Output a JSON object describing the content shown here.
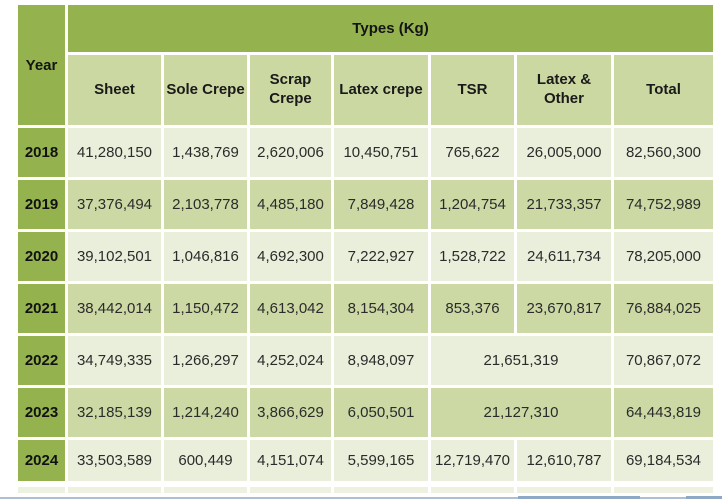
{
  "colors": {
    "header_green": "#94b34f",
    "subheader_green": "#cbd8a2",
    "band_row_green": "#ccd9a5",
    "light_row_green": "#eaefdb",
    "page_edge_blue": "#aebfd4"
  },
  "table": {
    "title": "Types (Kg)",
    "year_header": "Year",
    "columns": {
      "sheet": "Sheet",
      "sole_crepe": "Sole Crepe",
      "scrap_crepe": "Scrap Crepe",
      "latex_crepe": "Latex crepe",
      "tsr": "TSR",
      "latex_other": "Latex & Other",
      "total": "Total"
    },
    "rows": [
      {
        "year": "2018",
        "sheet": "41,280,150",
        "sole_crepe": "1,438,769",
        "scrap_crepe": "2,620,006",
        "latex_crepe": "10,450,751",
        "tsr": "765,622",
        "latex_other": "26,005,000",
        "total": "82,560,300"
      },
      {
        "year": "2019",
        "sheet": "37,376,494",
        "sole_crepe": "2,103,778",
        "scrap_crepe": "4,485,180",
        "latex_crepe": "7,849,428",
        "tsr": "1,204,754",
        "latex_other": "21,733,357",
        "total": "74,752,989"
      },
      {
        "year": "2020",
        "sheet": "39,102,501",
        "sole_crepe": "1,046,816",
        "scrap_crepe": "4,692,300",
        "latex_crepe": "7,222,927",
        "tsr": "1,528,722",
        "latex_other": "24,611,734",
        "total": "78,205,000"
      },
      {
        "year": "2021",
        "sheet": "38,442,014",
        "sole_crepe": "1,150,472",
        "scrap_crepe": "4,613,042",
        "latex_crepe": "8,154,304",
        "tsr": "853,376",
        "latex_other": "23,670,817",
        "total": "76,884,025"
      },
      {
        "year": "2022",
        "sheet": "34,749,335",
        "sole_crepe": "1,266,297",
        "scrap_crepe": "4,252,024",
        "latex_crepe": "8,948,097",
        "tsr_latex_other": "21,651,319",
        "total": "70,867,072"
      },
      {
        "year": "2023",
        "sheet": "32,185,139",
        "sole_crepe": "1,214,240",
        "scrap_crepe": "3,866,629",
        "latex_crepe": "6,050,501",
        "tsr_latex_other": "21,127,310",
        "total": "64,443,819"
      },
      {
        "year": "2024",
        "sheet": "33,503,589",
        "sole_crepe": "600,449",
        "scrap_crepe": "4,151,074",
        "latex_crepe": "5,599,165",
        "tsr": "12,719,470",
        "latex_other": "12,610,787",
        "total": "69,184,534"
      }
    ]
  },
  "chart_data": {
    "type": "table",
    "title": "Types (Kg)",
    "row_header": "Year",
    "columns": [
      "Sheet",
      "Sole Crepe",
      "Scrap Crepe",
      "Latex crepe",
      "TSR",
      "Latex & Other",
      "Total"
    ],
    "rows": [
      {
        "year": 2018,
        "values": [
          41280150,
          1438769,
          2620006,
          10450751,
          765622,
          26005000,
          82560300
        ]
      },
      {
        "year": 2019,
        "values": [
          37376494,
          2103778,
          4485180,
          7849428,
          1204754,
          21733357,
          74752989
        ]
      },
      {
        "year": 2020,
        "values": [
          39102501,
          1046816,
          4692300,
          7222927,
          1528722,
          24611734,
          78205000
        ]
      },
      {
        "year": 2021,
        "values": [
          38442014,
          1150472,
          4613042,
          8154304,
          853376,
          23670817,
          76884025
        ]
      },
      {
        "year": 2022,
        "values": [
          34749335,
          1266297,
          4252024,
          8948097,
          21651319,
          null,
          70867072
        ],
        "note": "TSR and Latex & Other merged: 21,651,319"
      },
      {
        "year": 2023,
        "values": [
          32185139,
          1214240,
          3866629,
          6050501,
          21127310,
          null,
          64443819
        ],
        "note": "TSR and Latex & Other merged: 21,127,310"
      },
      {
        "year": 2024,
        "values": [
          33503589,
          600449,
          4151074,
          5599165,
          12719470,
          12610787,
          69184534
        ]
      }
    ]
  }
}
